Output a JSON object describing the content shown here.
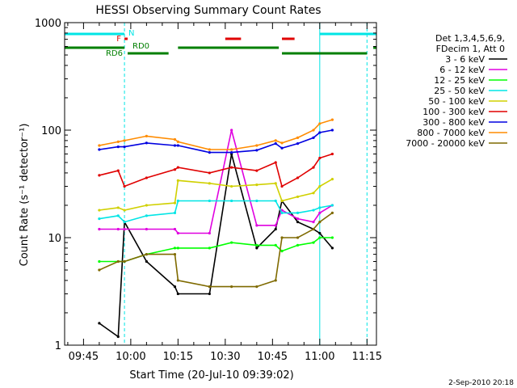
{
  "chart_data": {
    "type": "line",
    "title": "HESSI Observing Summary Count Rates",
    "xlabel": "Start Time (20-Jul-10 09:39:02)",
    "ylabel": "Count Rate (s⁻¹ detector⁻¹)",
    "y_scale": "log",
    "ylim": [
      1,
      1000
    ],
    "xlim": [
      "09:39",
      "11:18"
    ],
    "x_ticks": [
      "09:45",
      "10:00",
      "10:15",
      "10:30",
      "10:45",
      "11:00",
      "11:15"
    ],
    "y_ticks": [
      "1",
      "10",
      "100",
      "1000"
    ],
    "footer_date": "2-Sep-2010 20:18",
    "legend": {
      "placement": "right",
      "header": [
        "Det 1,3,4,5,6,9,",
        "FDecim 1, Att 0"
      ]
    },
    "flags": [
      {
        "label": "N",
        "color": "#00e5e5",
        "segments": [
          [
            "09:39",
            "09:58"
          ],
          [
            "11:00",
            "11:18"
          ]
        ]
      },
      {
        "label": "F",
        "color": "#e00000",
        "segments": [
          [
            "09:58",
            "09:59"
          ],
          [
            "10:30",
            "10:35"
          ],
          [
            "10:48",
            "10:52"
          ]
        ]
      },
      {
        "label": "RD0",
        "color": "#007f00",
        "segments": [
          [
            "09:39",
            "09:58"
          ],
          [
            "10:15",
            "10:47"
          ],
          [
            "11:17",
            "11:18"
          ]
        ]
      },
      {
        "label": "RD6",
        "color": "#007f00",
        "segments": [
          [
            "09:59",
            "10:12"
          ],
          [
            "10:48",
            "11:15"
          ]
        ]
      }
    ],
    "vlines": [
      {
        "t": "09:39",
        "color": "#00e5e5",
        "style": "solid"
      },
      {
        "t": "09:58",
        "color": "#00e5e5",
        "style": "dashed"
      },
      {
        "t": "11:00",
        "color": "#00e5e5",
        "style": "solid"
      },
      {
        "t": "11:15",
        "color": "#00e5e5",
        "style": "dashed"
      }
    ],
    "x": [
      "09:50",
      "09:56",
      "09:58",
      "10:05",
      "10:14",
      "10:15",
      "10:25",
      "10:32",
      "10:40",
      "10:46",
      "10:48",
      "10:53",
      "10:58",
      "11:00",
      "11:04"
    ],
    "series": [
      {
        "name": "3 - 6 keV",
        "color": "#000000",
        "values": [
          1.6,
          1.2,
          14,
          6,
          3.5,
          3,
          3,
          60,
          8,
          12,
          22,
          14,
          12,
          11,
          8
        ]
      },
      {
        "name": "6 - 12 keV",
        "color": "#e000e0",
        "values": [
          12,
          12,
          12,
          12,
          12,
          11,
          11,
          100,
          13,
          13,
          18,
          15,
          14,
          17,
          20
        ]
      },
      {
        "name": "12 - 25 keV",
        "color": "#00ff00",
        "values": [
          6,
          6,
          6,
          7,
          8,
          8,
          8,
          9,
          8.5,
          8.5,
          7.5,
          8.5,
          9,
          10,
          10
        ]
      },
      {
        "name": "25 - 50 keV",
        "color": "#00e5e5",
        "values": [
          15,
          16,
          14,
          16,
          17,
          22,
          22,
          22,
          22,
          22,
          17,
          17,
          18,
          19,
          20
        ]
      },
      {
        "name": "50 - 100 keV",
        "color": "#d0d000",
        "values": [
          18,
          19,
          18,
          20,
          21,
          34,
          32,
          30,
          31,
          32,
          22,
          24,
          26,
          30,
          35
        ]
      },
      {
        "name": "100 - 300 keV",
        "color": "#e00000",
        "values": [
          38,
          42,
          30,
          36,
          43,
          45,
          40,
          45,
          42,
          50,
          30,
          36,
          45,
          55,
          60
        ]
      },
      {
        "name": "300 - 800 keV",
        "color": "#0000e0",
        "values": [
          66,
          70,
          70,
          76,
          72,
          72,
          62,
          62,
          65,
          75,
          68,
          75,
          85,
          95,
          100
        ]
      },
      {
        "name": "800 - 7000 keV",
        "color": "#ff8c00",
        "values": [
          72,
          78,
          80,
          88,
          82,
          78,
          66,
          66,
          72,
          80,
          76,
          85,
          100,
          115,
          125
        ]
      },
      {
        "name": "7000 - 20000 keV",
        "color": "#7f6a00",
        "values": [
          5,
          6,
          6,
          7,
          7,
          4,
          3.5,
          3.5,
          3.5,
          4,
          10,
          10,
          12,
          14,
          17
        ]
      }
    ]
  }
}
